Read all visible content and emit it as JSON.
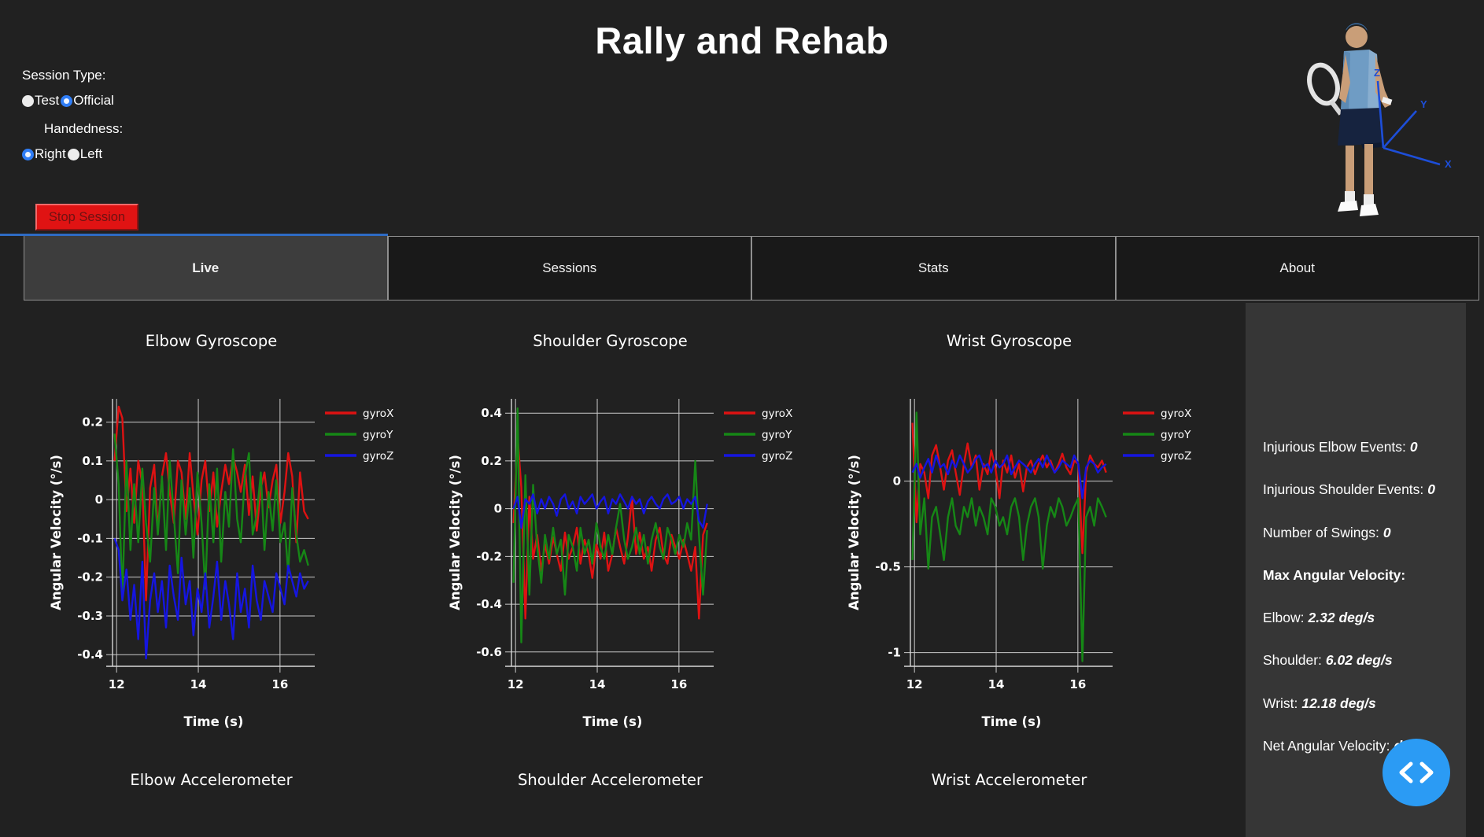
{
  "header": {
    "title": "Rally and Rehab",
    "session_type_label": "Session Type:",
    "session_options": [
      {
        "label": "Test",
        "selected": false
      },
      {
        "label": "Official",
        "selected": true
      }
    ],
    "handedness_label": "Handedness:",
    "handedness_options": [
      {
        "label": "Right",
        "selected": true
      },
      {
        "label": "Left",
        "selected": false
      }
    ],
    "stop_button_label": "Stop Session",
    "player_axes": {
      "z": "Z",
      "y": "Y",
      "x": "X"
    }
  },
  "tabs": [
    {
      "label": "Live",
      "active": true
    },
    {
      "label": "Sessions",
      "active": false
    },
    {
      "label": "Stats",
      "active": false
    },
    {
      "label": "About",
      "active": false
    }
  ],
  "sidebar": {
    "stats": [
      {
        "label": "Injurious Elbow Events:",
        "value": "0"
      },
      {
        "label": "Injurious Shoulder Events:",
        "value": "0"
      },
      {
        "label": "Number of Swings:",
        "value": "0"
      }
    ],
    "max_heading": "Max Angular Velocity:",
    "max_stats": [
      {
        "label": "Elbow:",
        "value": "2.32 deg/s"
      },
      {
        "label": "Shoulder:",
        "value": "6.02 deg/s"
      },
      {
        "label": "Wrist:",
        "value": "12.18 deg/s"
      },
      {
        "label": "Net Angular Velocity:",
        "value": "deg/s"
      }
    ]
  },
  "accelerometer_titles": [
    "Elbow Accelerometer",
    "Shoulder Accelerometer",
    "Wrist Accelerometer"
  ],
  "colors": {
    "accent_blue": "#2b9bf4",
    "tab_indicator": "#2e6bc4",
    "stop_red": "#e01313",
    "sidebar_bg": "#363636",
    "gyro_x": "#de1212",
    "gyro_y": "#168716",
    "gyro_z": "#1515e0"
  },
  "chart_data": [
    {
      "type": "line",
      "title": "Elbow Gyroscope",
      "xlabel": "Time (s)",
      "ylabel": "Angular Velocity (°/s)",
      "xlim": [
        11.9,
        16.85
      ],
      "ylim": [
        -0.43,
        0.26
      ],
      "xticks": [
        12,
        14,
        16
      ],
      "yticks": [
        0.2,
        0.1,
        0,
        -0.1,
        -0.2,
        -0.3,
        -0.4
      ],
      "legend_position": "upper-right-outside",
      "grid": true,
      "x": [
        11.95,
        12.05,
        12.14,
        12.24,
        12.34,
        12.43,
        12.53,
        12.63,
        12.72,
        12.82,
        12.92,
        13.01,
        13.11,
        13.21,
        13.3,
        13.4,
        13.5,
        13.59,
        13.69,
        13.79,
        13.88,
        13.98,
        14.08,
        14.17,
        14.27,
        14.37,
        14.46,
        14.56,
        14.66,
        14.75,
        14.85,
        14.95,
        15.04,
        15.14,
        15.24,
        15.33,
        15.43,
        15.53,
        15.62,
        15.72,
        15.82,
        15.91,
        16.01,
        16.11,
        16.2,
        16.3,
        16.4,
        16.49,
        16.59,
        16.69
      ],
      "series": [
        {
          "name": "gyroX",
          "color": "#de1212",
          "values": [
            0.1,
            0.24,
            0.21,
            -0.03,
            0.08,
            -0.06,
            0.1,
            0.04,
            -0.26,
            0.03,
            0.09,
            -0.08,
            0.06,
            0.12,
            0.02,
            -0.06,
            0.1,
            0.07,
            -0.05,
            0.12,
            0.01,
            -0.09,
            0.05,
            0.1,
            -0.03,
            0.07,
            -0.07,
            0.02,
            0.09,
            0.04,
            0.11,
            0.07,
            0.02,
            0.09,
            -0.04,
            0.06,
            -0.08,
            0.03,
            0.07,
            -0.02,
            0.05,
            0.09,
            -0.06,
            0.02,
            0.12,
            0.06,
            -0.11,
            0.07,
            -0.03,
            -0.05
          ]
        },
        {
          "name": "gyroY",
          "color": "#168716",
          "values": [
            0.17,
            0.04,
            -0.25,
            0.1,
            -0.13,
            0.04,
            -0.11,
            0.08,
            -0.06,
            -0.16,
            0.03,
            -0.09,
            0.06,
            -0.13,
            0.1,
            -0.04,
            -0.19,
            0.05,
            -0.09,
            0.03,
            -0.15,
            0.07,
            -0.06,
            -0.23,
            0.04,
            -0.11,
            0.08,
            -0.16,
            0.02,
            -0.07,
            0.13,
            -0.05,
            -0.11,
            0.06,
            0.12,
            -0.09,
            -0.04,
            0.07,
            -0.13,
            0.02,
            -0.08,
            0.05,
            -0.11,
            -0.06,
            -0.19,
            0.03,
            -0.09,
            -0.16,
            -0.13,
            -0.17
          ]
        },
        {
          "name": "gyroZ",
          "color": "#1515e0",
          "values": [
            -0.1,
            -0.13,
            -0.26,
            -0.18,
            -0.31,
            -0.22,
            -0.36,
            -0.16,
            -0.41,
            -0.26,
            -0.19,
            -0.29,
            -0.21,
            -0.33,
            -0.17,
            -0.25,
            -0.31,
            -0.15,
            -0.27,
            -0.21,
            -0.35,
            -0.23,
            -0.29,
            -0.19,
            -0.33,
            -0.25,
            -0.16,
            -0.31,
            -0.21,
            -0.27,
            -0.36,
            -0.19,
            -0.29,
            -0.23,
            -0.33,
            -0.17,
            -0.26,
            -0.31,
            -0.21,
            -0.25,
            -0.29,
            -0.19,
            -0.23,
            -0.27,
            -0.17,
            -0.21,
            -0.25,
            -0.19,
            -0.23,
            -0.21
          ]
        }
      ]
    },
    {
      "type": "line",
      "title": "Shoulder Gyroscope",
      "xlabel": "Time (s)",
      "ylabel": "Angular Velocity (°/s)",
      "xlim": [
        11.9,
        16.85
      ],
      "ylim": [
        -0.66,
        0.46
      ],
      "xticks": [
        12,
        14,
        16
      ],
      "yticks": [
        0.4,
        0.2,
        0,
        -0.2,
        -0.4,
        -0.6
      ],
      "legend_position": "upper-right-outside",
      "grid": true,
      "x": [
        11.95,
        12.05,
        12.14,
        12.24,
        12.34,
        12.43,
        12.53,
        12.63,
        12.72,
        12.82,
        12.92,
        13.01,
        13.11,
        13.21,
        13.3,
        13.4,
        13.5,
        13.59,
        13.69,
        13.79,
        13.88,
        13.98,
        14.08,
        14.17,
        14.27,
        14.37,
        14.46,
        14.56,
        14.66,
        14.75,
        14.85,
        14.95,
        15.04,
        15.14,
        15.24,
        15.33,
        15.43,
        15.53,
        15.62,
        15.72,
        15.82,
        15.91,
        16.01,
        16.11,
        16.2,
        16.3,
        16.4,
        16.49,
        16.59,
        16.69
      ],
      "series": [
        {
          "name": "gyroX",
          "color": "#de1212",
          "values": [
            -0.06,
            0.3,
            0.09,
            -0.46,
            0.05,
            -0.21,
            -0.11,
            -0.26,
            -0.15,
            -0.23,
            -0.12,
            -0.19,
            -0.26,
            -0.1,
            -0.21,
            -0.16,
            -0.08,
            -0.23,
            -0.13,
            -0.19,
            -0.29,
            -0.15,
            -0.21,
            -0.1,
            -0.26,
            -0.19,
            -0.08,
            -0.16,
            -0.23,
            -0.12,
            0.05,
            -0.19,
            -0.1,
            -0.21,
            -0.16,
            -0.26,
            -0.13,
            -0.08,
            -0.19,
            -0.23,
            -0.11,
            -0.16,
            -0.21,
            -0.13,
            -0.19,
            -0.26,
            -0.16,
            -0.46,
            -0.11,
            -0.06
          ]
        },
        {
          "name": "gyroY",
          "color": "#168716",
          "values": [
            -0.31,
            0.42,
            -0.56,
            0.14,
            -0.36,
            0.1,
            -0.16,
            -0.31,
            -0.11,
            -0.21,
            -0.08,
            -0.19,
            -0.13,
            -0.36,
            -0.11,
            -0.16,
            -0.26,
            -0.08,
            -0.19,
            -0.13,
            -0.23,
            -0.06,
            -0.16,
            -0.21,
            -0.11,
            -0.19,
            -0.08,
            0.02,
            -0.13,
            -0.21,
            -0.16,
            -0.08,
            -0.19,
            -0.11,
            -0.23,
            -0.13,
            -0.06,
            -0.16,
            -0.21,
            -0.08,
            -0.13,
            -0.19,
            -0.11,
            -0.16,
            -0.06,
            -0.13,
            0.2,
            -0.11,
            -0.36,
            -0.09
          ]
        },
        {
          "name": "gyroZ",
          "color": "#1515e0",
          "values": [
            0.0,
            0.05,
            -0.08,
            0.04,
            0.02,
            0.06,
            -0.02,
            0.04,
            0.0,
            0.05,
            0.02,
            -0.03,
            0.04,
            0.06,
            0.0,
            0.03,
            -0.02,
            0.05,
            0.02,
            0.04,
            0.06,
            0.0,
            0.03,
            0.05,
            -0.02,
            0.04,
            0.02,
            0.06,
            0.03,
            0.0,
            0.05,
            0.02,
            0.04,
            -0.02,
            0.03,
            0.05,
            0.02,
            0.0,
            0.04,
            0.06,
            0.02,
            0.03,
            0.05,
            0.0,
            0.04,
            0.02,
            0.05,
            -0.05,
            -0.08,
            0.02
          ]
        }
      ]
    },
    {
      "type": "line",
      "title": "Wrist Gyroscope",
      "xlabel": "Time (s)",
      "ylabel": "Angular Velocity (°/s)",
      "xlim": [
        11.9,
        16.85
      ],
      "ylim": [
        -1.08,
        0.48
      ],
      "xticks": [
        12,
        14,
        16
      ],
      "yticks": [
        0,
        -0.5,
        -1
      ],
      "legend_position": "upper-right-outside",
      "grid": true,
      "x": [
        11.95,
        12.05,
        12.14,
        12.24,
        12.34,
        12.43,
        12.53,
        12.63,
        12.72,
        12.82,
        12.92,
        13.01,
        13.11,
        13.21,
        13.3,
        13.4,
        13.5,
        13.59,
        13.69,
        13.79,
        13.88,
        13.98,
        14.08,
        14.17,
        14.27,
        14.37,
        14.46,
        14.56,
        14.66,
        14.75,
        14.85,
        14.95,
        15.04,
        15.14,
        15.24,
        15.33,
        15.43,
        15.53,
        15.62,
        15.72,
        15.82,
        15.91,
        16.01,
        16.11,
        16.2,
        16.3,
        16.4,
        16.49,
        16.59,
        16.69
      ],
      "series": [
        {
          "name": "gyroX",
          "color": "#de1212",
          "values": [
            0.34,
            -0.24,
            0.1,
            0.05,
            -0.1,
            0.15,
            0.21,
            0.08,
            -0.05,
            0.12,
            0.18,
            0.05,
            -0.08,
            0.1,
            0.22,
            0.08,
            0.15,
            -0.05,
            0.1,
            0.04,
            0.18,
            0.08,
            -0.1,
            0.12,
            0.05,
            0.15,
            0.02,
            0.1,
            -0.06,
            0.08,
            0.12,
            0.04,
            0.1,
            0.15,
            0.08,
            0.12,
            0.05,
            0.1,
            0.16,
            0.08,
            0.04,
            0.12,
            0.1,
            -0.42,
            0.05,
            0.15,
            0.1,
            0.08,
            0.12,
            0.05
          ]
        },
        {
          "name": "gyroY",
          "color": "#168716",
          "values": [
            -0.46,
            0.4,
            -0.31,
            -0.1,
            -0.51,
            -0.21,
            -0.15,
            -0.31,
            -0.46,
            -0.21,
            -0.1,
            -0.26,
            -0.31,
            -0.15,
            -0.21,
            -0.1,
            -0.26,
            -0.15,
            -0.21,
            -0.31,
            -0.1,
            -0.15,
            -0.26,
            -0.21,
            -0.31,
            -0.15,
            -0.1,
            -0.21,
            -0.46,
            -0.26,
            -0.15,
            -0.1,
            -0.21,
            -0.51,
            -0.26,
            -0.15,
            -0.21,
            -0.1,
            -0.15,
            -0.26,
            -0.21,
            -0.15,
            -0.1,
            -1.05,
            -0.21,
            -0.15,
            -0.26,
            -0.1,
            -0.15,
            -0.21
          ]
        },
        {
          "name": "gyroZ",
          "color": "#1515e0",
          "values": [
            0.05,
            0.1,
            0.02,
            0.08,
            0.13,
            0.05,
            0.15,
            0.08,
            0.1,
            0.04,
            0.12,
            0.08,
            0.15,
            0.1,
            0.05,
            0.08,
            0.13,
            0.15,
            0.08,
            0.1,
            0.05,
            0.12,
            0.08,
            0.1,
            0.15,
            0.04,
            0.08,
            0.12,
            0.1,
            0.08,
            0.05,
            0.1,
            0.13,
            0.08,
            0.15,
            0.1,
            0.05,
            0.08,
            0.12,
            0.1,
            0.08,
            0.15,
            0.1,
            -0.1,
            0.08,
            0.12,
            0.1,
            0.05,
            0.08,
            0.1
          ]
        }
      ]
    }
  ]
}
